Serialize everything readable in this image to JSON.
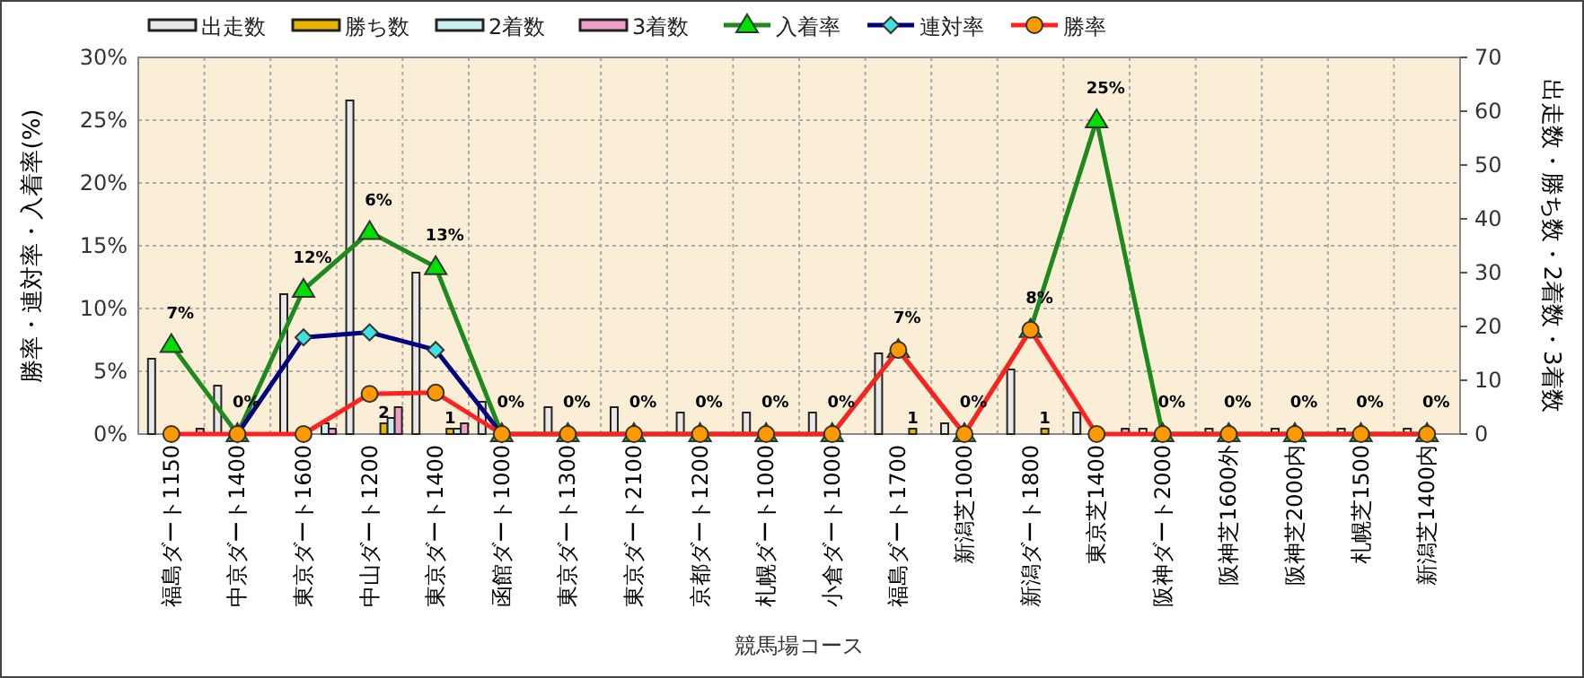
{
  "chart_data": {
    "type": "bar",
    "xlabel": "競馬場コース",
    "ylabel": "勝率・連対率・入着率(%)",
    "y2label": "出走数・勝ち数・2着数・3着数",
    "categories": [
      "福島ダート1150",
      "中京ダート1400",
      "東京ダート1600",
      "中山ダート1200",
      "東京ダート1400",
      "函館ダート1000",
      "東京ダート1300",
      "東京ダート2100",
      "京都ダート1200",
      "札幌ダート1000",
      "小倉ダート1000",
      "福島ダート1700",
      "新潟芝1000",
      "新潟ダート1800",
      "東京芝1400",
      "阪神ダート2000",
      "阪神芝1600外",
      "阪神芝2000内",
      "札幌芝1500",
      "新潟芝1400内"
    ],
    "series": [
      {
        "name": "出走数",
        "axis": "y2",
        "color": "#e8e8e8",
        "values": [
          14,
          9,
          26,
          62,
          30,
          6,
          5,
          5,
          4,
          4,
          4,
          15,
          2,
          12,
          4,
          1,
          1,
          1,
          1,
          1
        ]
      },
      {
        "name": "勝ち数",
        "axis": "y2",
        "color": "#e8b400",
        "values": [
          0,
          0,
          0,
          2,
          1,
          0,
          0,
          0,
          0,
          0,
          0,
          1,
          0,
          1,
          0,
          0,
          0,
          0,
          0,
          0
        ],
        "value_labels": [
          null,
          null,
          null,
          "2",
          "1",
          null,
          null,
          null,
          null,
          null,
          null,
          "1",
          null,
          "1",
          null,
          null,
          null,
          null,
          null,
          null
        ]
      },
      {
        "name": "2着数",
        "axis": "y2",
        "color": "#c8f0f0",
        "values": [
          0,
          0,
          2,
          3,
          1,
          0,
          0,
          0,
          0,
          0,
          0,
          0,
          0,
          0,
          0,
          0,
          0,
          0,
          0,
          0
        ]
      },
      {
        "name": "3着数",
        "axis": "y2",
        "color": "#f0a0c8",
        "values": [
          1,
          0,
          1,
          5,
          2,
          0,
          0,
          0,
          0,
          0,
          0,
          0,
          0,
          0,
          1,
          0,
          0,
          0,
          0,
          0
        ]
      },
      {
        "name": "入着率",
        "type": "line",
        "color": "#1e8a1e",
        "marker": "triangle",
        "values": [
          7.1,
          0,
          11.5,
          16.1,
          13.3,
          0,
          0,
          0,
          0,
          0,
          0,
          6.7,
          0,
          8.3,
          25,
          0,
          0,
          0,
          0,
          0
        ],
        "value_labels": [
          "7%",
          "0%",
          "12%",
          null,
          "13%",
          "0%",
          "0%",
          "0%",
          "0%",
          "0%",
          "0%",
          "7%",
          "0%",
          "8%",
          "25%",
          "0%",
          "0%",
          "0%",
          "0%",
          "0%"
        ]
      },
      {
        "name": "連対率",
        "type": "line",
        "color": "#000080",
        "marker": "diamond",
        "values": [
          null,
          0,
          7.7,
          8.1,
          6.7,
          0,
          null,
          null,
          null,
          null,
          null,
          null,
          null,
          null,
          null,
          null,
          null,
          null,
          null,
          null
        ]
      },
      {
        "name": "勝率",
        "type": "line",
        "color": "#ff2020",
        "marker": "circle",
        "values": [
          0,
          0,
          0,
          3.2,
          3.3,
          0,
          0,
          0,
          0,
          0,
          0,
          6.7,
          0,
          8.3,
          0,
          0,
          0,
          0,
          0,
          0
        ]
      }
    ],
    "ylim": [
      0,
      30
    ],
    "yticks": [
      {
        "value": 0,
        "label": "0%"
      },
      {
        "value": 5,
        "label": "5%"
      },
      {
        "value": 10,
        "label": "10%"
      },
      {
        "value": 15,
        "label": "15%"
      },
      {
        "value": 20,
        "label": "20%"
      },
      {
        "value": 25,
        "label": "25%"
      },
      {
        "value": 30,
        "label": "30%"
      }
    ],
    "y2lim": [
      0,
      70
    ],
    "y2ticks": [
      0,
      10,
      20,
      30,
      40,
      50,
      60,
      70
    ],
    "annotations": [
      {
        "text": "6%",
        "x": "中山ダート1200",
        "y": 16.1
      }
    ],
    "grid": true,
    "legend": "top"
  }
}
